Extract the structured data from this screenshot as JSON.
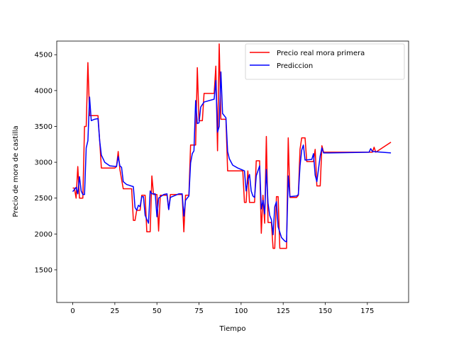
{
  "chart_data": {
    "type": "line",
    "xlabel": "Tiempo",
    "ylabel": "Precio de mora de castilla",
    "xlim": [
      -9.5,
      199.5
    ],
    "ylim": [
      1045,
      4690
    ],
    "xticks": [
      0,
      25,
      50,
      75,
      100,
      125,
      150,
      175
    ],
    "yticks": [
      1500,
      2000,
      2500,
      3000,
      3500,
      4000,
      4500
    ],
    "legend": "upper right",
    "series": [
      {
        "name": "Precio real mora primera",
        "color": "#ff0000",
        "x": [
          0,
          1,
          2,
          3,
          4,
          5,
          6,
          7,
          8,
          9,
          10,
          11,
          15,
          16,
          17,
          25,
          26,
          27,
          28,
          30,
          35,
          36,
          37,
          38,
          40,
          41,
          43,
          44,
          46,
          47,
          48,
          50,
          51,
          52,
          56,
          57,
          58,
          65,
          66,
          67,
          69,
          70,
          73,
          74,
          75,
          77,
          78,
          84,
          85,
          86,
          87,
          88,
          91,
          92,
          100,
          101,
          102,
          103,
          104,
          105,
          108,
          109,
          111,
          112,
          113,
          114,
          115,
          116,
          118,
          119,
          120,
          121,
          122,
          123,
          127,
          128,
          129,
          133,
          134,
          135,
          136,
          138,
          139,
          143,
          144,
          145,
          147,
          148,
          149,
          178,
          179,
          180,
          189
        ],
        "values": [
          2640,
          2640,
          2500,
          2940,
          2500,
          2500,
          2500,
          3500,
          3500,
          4390,
          3650,
          3650,
          3650,
          3300,
          2920,
          2920,
          2940,
          3150,
          2900,
          2630,
          2630,
          2190,
          2190,
          2330,
          2330,
          2540,
          2540,
          2030,
          2030,
          2810,
          2550,
          2550,
          2040,
          2540,
          2540,
          2340,
          2550,
          2550,
          2030,
          2540,
          2540,
          3240,
          3240,
          4320,
          3580,
          3580,
          3960,
          3960,
          4340,
          3160,
          4650,
          3600,
          3600,
          2880,
          2880,
          2880,
          2440,
          2440,
          2880,
          2440,
          2440,
          3020,
          3020,
          2010,
          2540,
          2150,
          3360,
          2160,
          2160,
          1800,
          1800,
          2520,
          2520,
          1800,
          1800,
          3340,
          2510,
          2510,
          2540,
          3180,
          3340,
          3340,
          3010,
          3010,
          3180,
          2670,
          2670,
          3230,
          3140,
          3140,
          3210,
          3140,
          3280
        ]
      },
      {
        "name": "Prediccion",
        "color": "#0000ff",
        "x": [
          0,
          2,
          3,
          4,
          5,
          6,
          7,
          8,
          9,
          10,
          11,
          13,
          15,
          16,
          17,
          19,
          22,
          26,
          27,
          28,
          29,
          30,
          32,
          36,
          37,
          38,
          39,
          40,
          41,
          42,
          43,
          45,
          46,
          47,
          49,
          50,
          51,
          54,
          56,
          57,
          58,
          63,
          65,
          66,
          67,
          69,
          70,
          71,
          72,
          73,
          74,
          75,
          76,
          78,
          84,
          85,
          86,
          87,
          88,
          89,
          91,
          92,
          93,
          95,
          98,
          101,
          102,
          103,
          104,
          105,
          106,
          107,
          108,
          109,
          110,
          111,
          112,
          113,
          114,
          115,
          116,
          117,
          118,
          119,
          120,
          121,
          122,
          124,
          126,
          127,
          128,
          129,
          133,
          134,
          135,
          136,
          137,
          138,
          142,
          143,
          144,
          145,
          147,
          148,
          149,
          152,
          176,
          177,
          178,
          189
        ],
        "values": [
          2590,
          2650,
          2560,
          2800,
          2600,
          2550,
          2550,
          3200,
          3300,
          3910,
          3580,
          3600,
          3610,
          3300,
          3100,
          3000,
          2950,
          2940,
          3080,
          2950,
          2930,
          2730,
          2690,
          2660,
          2370,
          2330,
          2400,
          2380,
          2520,
          2520,
          2260,
          2150,
          2600,
          2560,
          2560,
          2240,
          2500,
          2550,
          2560,
          2340,
          2510,
          2560,
          2560,
          2250,
          2470,
          2530,
          2990,
          3120,
          3160,
          3860,
          3540,
          3550,
          3770,
          3840,
          3880,
          4140,
          3420,
          3500,
          4260,
          3680,
          3620,
          3150,
          3050,
          2960,
          2920,
          2890,
          2880,
          2600,
          2750,
          2830,
          2600,
          2530,
          2510,
          2810,
          2880,
          2950,
          2350,
          2470,
          2280,
          2900,
          2430,
          2260,
          2200,
          1990,
          2380,
          2450,
          2100,
          1950,
          1900,
          1890,
          2810,
          2520,
          2530,
          2550,
          2950,
          3170,
          3240,
          3030,
          3040,
          3120,
          2820,
          2730,
          3090,
          3200,
          3130,
          3130,
          3140,
          3190,
          3150,
          3130
        ]
      }
    ]
  }
}
